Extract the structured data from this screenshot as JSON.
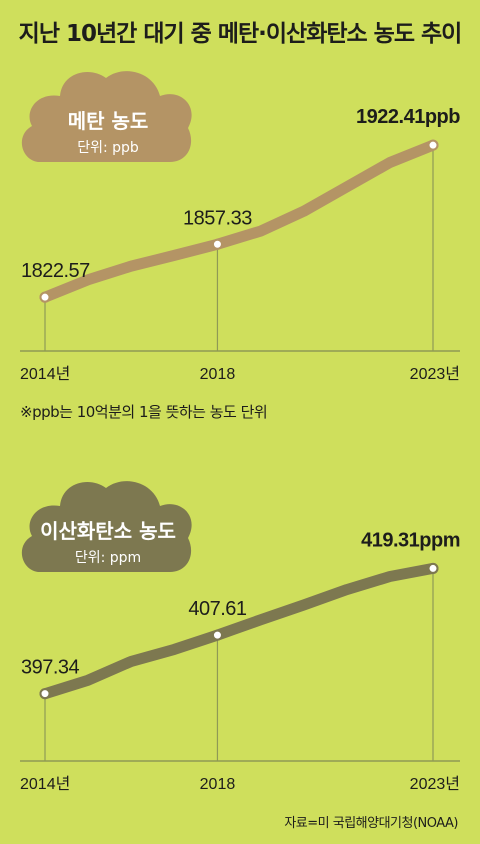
{
  "title": "지난 10년간 대기 중 메탄·이산화탄소 농도 추이",
  "note": "※ppb는 10억분의 1을 뜻하는 농도 단위",
  "source": "자료=미 국립해양대기청(NOAA)",
  "colors": {
    "background": "#cfdf5c",
    "methane": "#b49465",
    "co2": "#7d7850",
    "grid": "#8f9a55"
  },
  "chart_data": [
    {
      "type": "line",
      "name": "methane",
      "badge_title": "메탄 농도",
      "badge_unit": "단위: ppb",
      "x": [
        2014,
        2015,
        2016,
        2017,
        2018,
        2019,
        2020,
        2021,
        2022,
        2023
      ],
      "values": [
        1822.57,
        1834.0,
        1843.0,
        1850.0,
        1857.33,
        1866.0,
        1879.0,
        1895.0,
        1911.0,
        1922.41
      ],
      "ticks": [
        {
          "x": 2014,
          "label": "2014년"
        },
        {
          "x": 2018,
          "label": "2018"
        },
        {
          "x": 2023,
          "label": "2023년"
        }
      ],
      "markers": [
        {
          "x": 2014,
          "value": 1822.57,
          "label": "1822.57"
        },
        {
          "x": 2018,
          "value": 1857.33,
          "label": "1857.33"
        },
        {
          "x": 2023,
          "value": 1922.41,
          "label": "1922.41ppb"
        }
      ],
      "ylim": [
        1780,
        1935
      ]
    },
    {
      "type": "line",
      "name": "co2",
      "badge_title": "이산화탄소 농도",
      "badge_unit": "단위: ppm",
      "x": [
        2014,
        2015,
        2016,
        2017,
        2018,
        2019,
        2020,
        2021,
        2022,
        2023
      ],
      "values": [
        397.34,
        399.7,
        403.0,
        405.1,
        407.61,
        410.3,
        412.9,
        415.6,
        417.9,
        419.31
      ],
      "ticks": [
        {
          "x": 2014,
          "label": "2014년"
        },
        {
          "x": 2018,
          "label": "2018"
        },
        {
          "x": 2023,
          "label": "2023년"
        }
      ],
      "markers": [
        {
          "x": 2014,
          "value": 397.34,
          "label": "397.34"
        },
        {
          "x": 2018,
          "value": 407.61,
          "label": "407.61"
        },
        {
          "x": 2023,
          "value": 419.31,
          "label": "419.31ppm"
        }
      ],
      "ylim": [
        385,
        425
      ]
    }
  ]
}
